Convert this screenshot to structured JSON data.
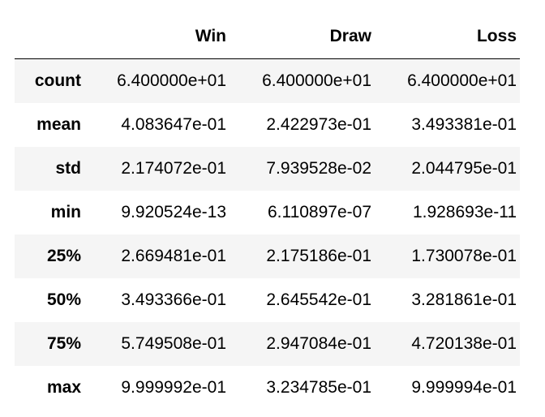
{
  "table": {
    "columns": [
      "Win",
      "Draw",
      "Loss"
    ],
    "rows": [
      {
        "label": "count",
        "values": [
          "6.400000e+01",
          "6.400000e+01",
          "6.400000e+01"
        ]
      },
      {
        "label": "mean",
        "values": [
          "4.083647e-01",
          "2.422973e-01",
          "3.493381e-01"
        ]
      },
      {
        "label": "std",
        "values": [
          "2.174072e-01",
          "7.939528e-02",
          "2.044795e-01"
        ]
      },
      {
        "label": "min",
        "values": [
          "9.920524e-13",
          "6.110897e-07",
          "1.928693e-11"
        ]
      },
      {
        "label": "25%",
        "values": [
          "2.669481e-01",
          "2.175186e-01",
          "1.730078e-01"
        ]
      },
      {
        "label": "50%",
        "values": [
          "3.493366e-01",
          "2.645542e-01",
          "3.281861e-01"
        ]
      },
      {
        "label": "75%",
        "values": [
          "5.749508e-01",
          "2.947084e-01",
          "4.720138e-01"
        ]
      },
      {
        "label": "max",
        "values": [
          "9.999992e-01",
          "3.234785e-01",
          "9.999994e-01"
        ]
      }
    ]
  },
  "colors": {
    "stripe": "#f5f5f5",
    "rule": "#000000",
    "text": "#000000"
  }
}
